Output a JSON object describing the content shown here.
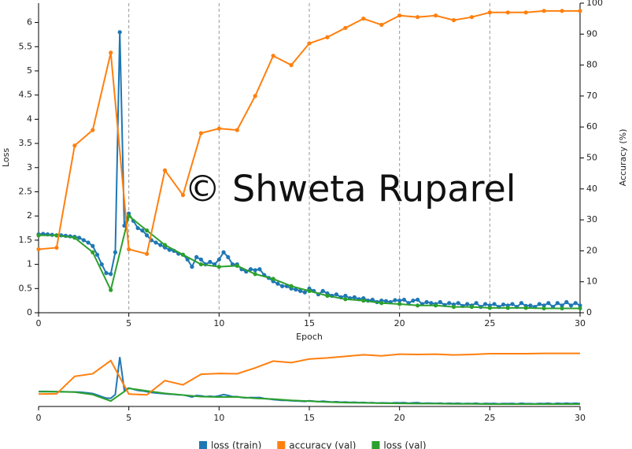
{
  "chart_data": {
    "type": "line",
    "x_label": "Epoch",
    "y_label": "Loss",
    "y2_label": "Accuracy (%)",
    "watermark": "© Shweta Ruparel",
    "xlim": [
      0,
      30
    ],
    "xticks": [
      0,
      5,
      10,
      15,
      20,
      25,
      30
    ],
    "ylim": [
      0,
      6.4
    ],
    "yticks": [
      0,
      0.5,
      1,
      1.5,
      2,
      2.5,
      3,
      3.5,
      4,
      4.5,
      5,
      5.5,
      6
    ],
    "y2lim": [
      0,
      100
    ],
    "y2ticks": [
      0,
      10,
      20,
      30,
      40,
      50,
      60,
      70,
      80,
      90,
      100
    ],
    "grid": "x",
    "legend": "bottom",
    "navigator": true,
    "series": [
      {
        "name": "loss (train)",
        "color": "#1f77b4",
        "x": [
          0,
          0.25,
          0.5,
          0.75,
          1,
          1.25,
          1.5,
          1.75,
          2,
          2.25,
          2.5,
          2.75,
          3,
          3.25,
          3.5,
          3.75,
          4,
          4.25,
          4.5,
          4.75,
          5,
          5.25,
          5.5,
          5.75,
          6,
          6.25,
          6.5,
          6.75,
          7,
          7.25,
          7.5,
          7.75,
          8,
          8.25,
          8.5,
          8.75,
          9,
          9.25,
          9.5,
          9.75,
          10,
          10.25,
          10.5,
          10.75,
          11,
          11.25,
          11.5,
          11.75,
          12,
          12.25,
          12.5,
          12.75,
          13,
          13.25,
          13.5,
          13.75,
          14,
          14.25,
          14.5,
          14.75,
          15,
          15.25,
          15.5,
          15.75,
          16,
          16.25,
          16.5,
          16.75,
          17,
          17.25,
          17.5,
          17.75,
          18,
          18.25,
          18.5,
          18.75,
          19,
          19.25,
          19.5,
          19.75,
          20,
          20.25,
          20.5,
          20.75,
          21,
          21.25,
          21.5,
          21.75,
          22,
          22.25,
          22.5,
          22.75,
          23,
          23.25,
          23.5,
          23.75,
          24,
          24.25,
          24.5,
          24.75,
          25,
          25.25,
          25.5,
          25.75,
          26,
          26.25,
          26.5,
          26.75,
          27,
          27.25,
          27.5,
          27.75,
          28,
          28.25,
          28.5,
          28.75,
          29,
          29.25,
          29.5,
          29.75,
          30
        ],
        "values": [
          1.62,
          1.63,
          1.62,
          1.61,
          1.6,
          1.6,
          1.59,
          1.58,
          1.57,
          1.55,
          1.5,
          1.45,
          1.38,
          1.2,
          1.0,
          0.82,
          0.8,
          1.25,
          5.8,
          1.8,
          2.05,
          1.9,
          1.75,
          1.7,
          1.6,
          1.5,
          1.45,
          1.4,
          1.35,
          1.3,
          1.28,
          1.22,
          1.2,
          1.1,
          0.95,
          1.15,
          1.1,
          1.0,
          1.05,
          1.0,
          1.1,
          1.25,
          1.15,
          1.0,
          1.0,
          0.9,
          0.85,
          0.9,
          0.88,
          0.9,
          0.78,
          0.72,
          0.65,
          0.6,
          0.55,
          0.55,
          0.5,
          0.48,
          0.45,
          0.42,
          0.5,
          0.45,
          0.38,
          0.45,
          0.4,
          0.35,
          0.38,
          0.32,
          0.35,
          0.3,
          0.32,
          0.28,
          0.3,
          0.25,
          0.27,
          0.22,
          0.25,
          0.24,
          0.22,
          0.26,
          0.25,
          0.27,
          0.2,
          0.25,
          0.27,
          0.18,
          0.22,
          0.2,
          0.18,
          0.22,
          0.16,
          0.2,
          0.17,
          0.2,
          0.14,
          0.18,
          0.15,
          0.2,
          0.12,
          0.18,
          0.15,
          0.18,
          0.12,
          0.17,
          0.15,
          0.18,
          0.12,
          0.2,
          0.14,
          0.15,
          0.12,
          0.18,
          0.15,
          0.2,
          0.12,
          0.2,
          0.15,
          0.22,
          0.15,
          0.2,
          0.15
        ]
      },
      {
        "name": "loss (val)",
        "color": "#2ca02c",
        "x": [
          0,
          1,
          2,
          3,
          4,
          5,
          6,
          7,
          8,
          9,
          10,
          11,
          12,
          13,
          14,
          15,
          16,
          17,
          18,
          19,
          20,
          21,
          22,
          23,
          24,
          25,
          26,
          27,
          28,
          29,
          30
        ],
        "values": [
          1.6,
          1.6,
          1.55,
          1.25,
          0.47,
          2.0,
          1.7,
          1.4,
          1.2,
          1.0,
          0.95,
          0.97,
          0.8,
          0.7,
          0.55,
          0.45,
          0.35,
          0.28,
          0.25,
          0.2,
          0.18,
          0.15,
          0.15,
          0.12,
          0.12,
          0.1,
          0.1,
          0.1,
          0.09,
          0.09,
          0.09
        ]
      },
      {
        "name": "accuracy (val)",
        "color": "#ff7f0e",
        "axis": "y2",
        "x": [
          0,
          1,
          2,
          3,
          4,
          5,
          6,
          7,
          8,
          9,
          10,
          11,
          12,
          13,
          14,
          15,
          16,
          17,
          18,
          19,
          20,
          21,
          22,
          23,
          24,
          25,
          26,
          27,
          28,
          29,
          30
        ],
        "values": [
          20.5,
          21,
          54,
          59,
          84,
          20.5,
          19,
          46,
          38,
          58,
          59.5,
          59,
          70,
          83,
          80,
          87,
          89,
          92,
          95,
          93,
          96,
          95.5,
          96,
          94.5,
          95.5,
          97,
          97,
          97,
          97.5,
          97.5,
          97.5
        ]
      }
    ]
  }
}
